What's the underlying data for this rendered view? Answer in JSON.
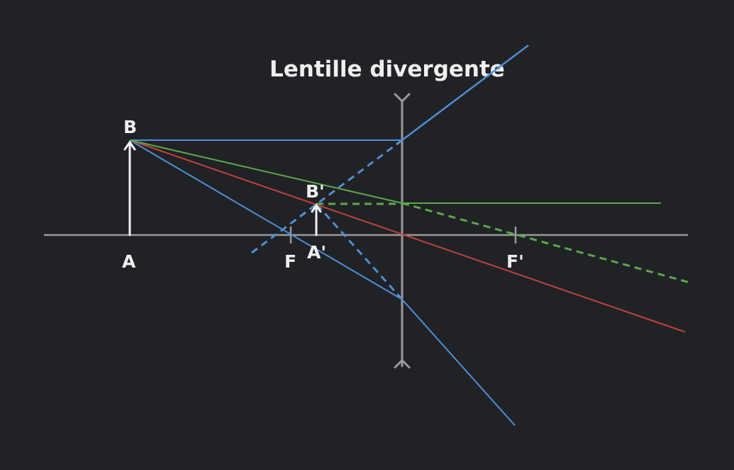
{
  "title": "Lentille divergente",
  "labels": {
    "object_top": "B",
    "object_base": "A",
    "focal_object": "F",
    "image_top": "B'",
    "image_base": "A'",
    "focal_image": "F'"
  },
  "colors": {
    "background": "#212226",
    "axis": "#9a9a9a",
    "arrow": "#f2f2f2",
    "ray_parallel": "#4f8fd6",
    "ray_center": "#c2413a",
    "ray_focal": "#5aa84c",
    "text": "#efefef"
  }
}
